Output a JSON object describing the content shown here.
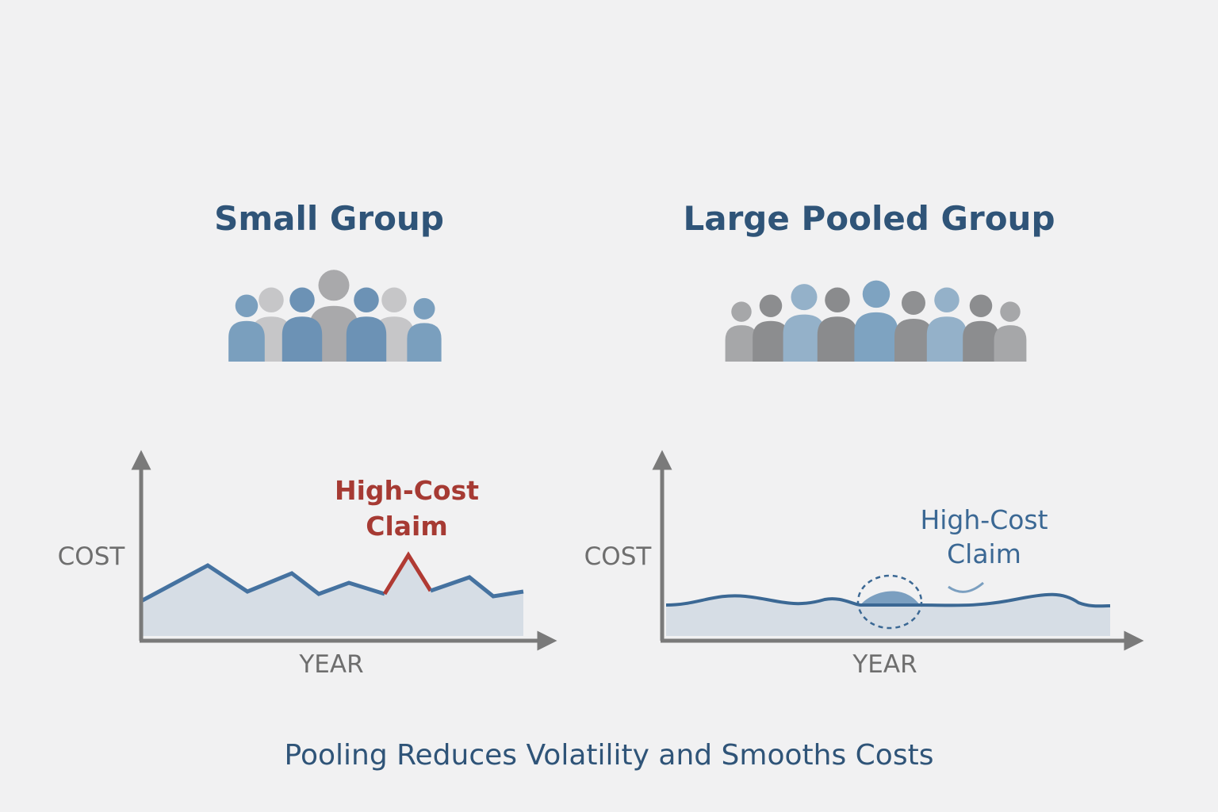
{
  "panels": [
    {
      "title": "Small Group",
      "y_label": "COST",
      "x_label": "YEAR",
      "annotation": [
        "High-Cost",
        "Claim"
      ]
    },
    {
      "title": "Large Pooled Group",
      "y_label": "COST",
      "x_label": "YEAR",
      "annotation": [
        "High-Cost",
        "Claim"
      ]
    }
  ],
  "caption": "Pooling Reduces Volatility and Smooths Costs"
}
